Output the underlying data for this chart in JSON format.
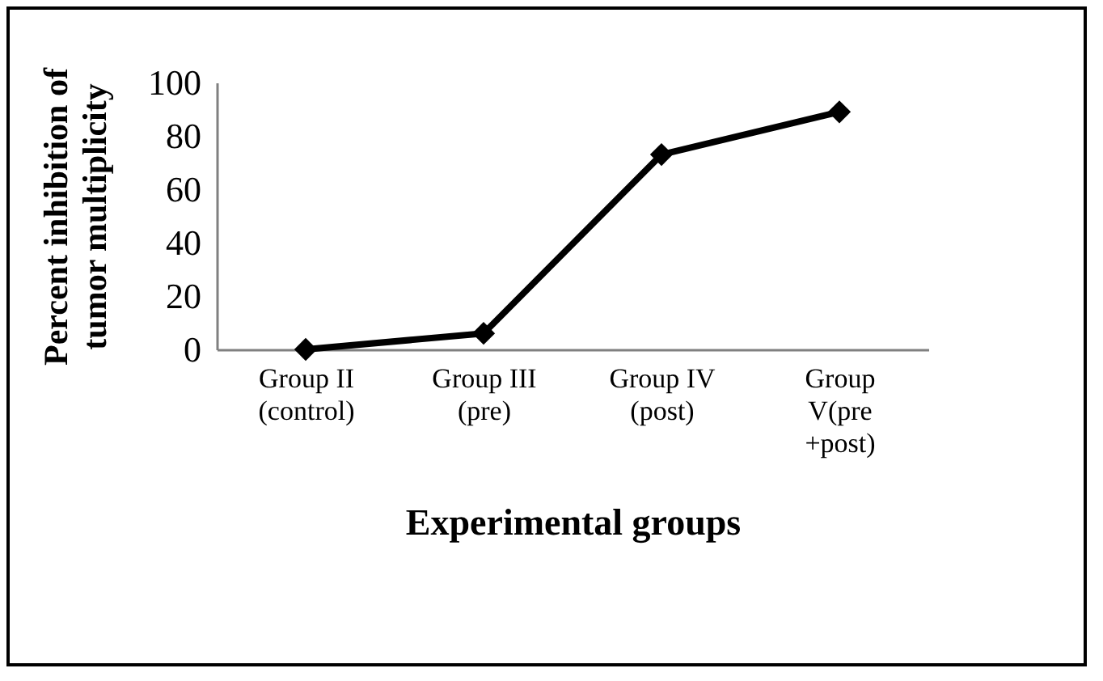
{
  "chart_data": {
    "type": "line",
    "xlabel": "Experimental groups",
    "ylabel": "Percent inhibition of tumor multiplicity",
    "categories": [
      "Group II\n(control)",
      "Group III\n(pre)",
      "Group IV\n(post)",
      "Group\nV(pre\n+post)"
    ],
    "series": [
      {
        "color": "#000000",
        "values": [
          0,
          6,
          73,
          89
        ]
      }
    ],
    "ylim": [
      0,
      100
    ],
    "yticks": [
      0,
      20,
      40,
      60,
      80,
      100
    ],
    "grid": false,
    "marker": "diamond",
    "line_style": "solid"
  }
}
